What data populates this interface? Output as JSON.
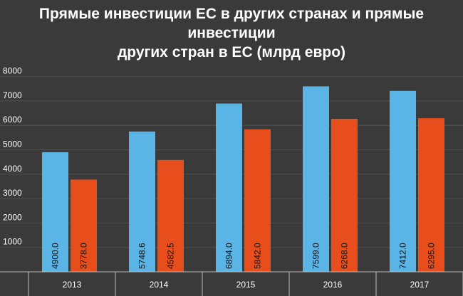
{
  "title_line1": "Прямые инвестиции ЕС в других странах и прямые инвестиции",
  "title_line2": "других стран в ЕС (млрд евро)",
  "chart_data": {
    "type": "bar",
    "title": "Прямые инвестиции ЕС в других странах и прямые инвестиции других стран в ЕС (млрд евро)",
    "categories": [
      "2013",
      "2014",
      "2015",
      "2016",
      "2017"
    ],
    "series": [
      {
        "values": [
          4900.0,
          5748.6,
          6894.0,
          7599.0,
          7412.0
        ],
        "value_labels": [
          "4900.0",
          "5748.6",
          "6894.0",
          "7599.0",
          "7412.0"
        ],
        "color": "#5ab4e5"
      },
      {
        "values": [
          3778.0,
          4582.5,
          5842.0,
          6268.0,
          6295.0
        ],
        "value_labels": [
          "3778.0",
          "4582.5",
          "5842.0",
          "6268.0",
          "6295.0"
        ],
        "color": "#e84e1c"
      }
    ],
    "yticks": [
      "1000",
      "2000",
      "3000",
      "4000",
      "5000",
      "6000",
      "7000",
      "8000"
    ],
    "ylim": [
      0,
      8500
    ],
    "grid": true,
    "legend": "none",
    "colors": {
      "background": "#3a3a3a",
      "grid": "#505050",
      "text": "#ffffff"
    }
  }
}
